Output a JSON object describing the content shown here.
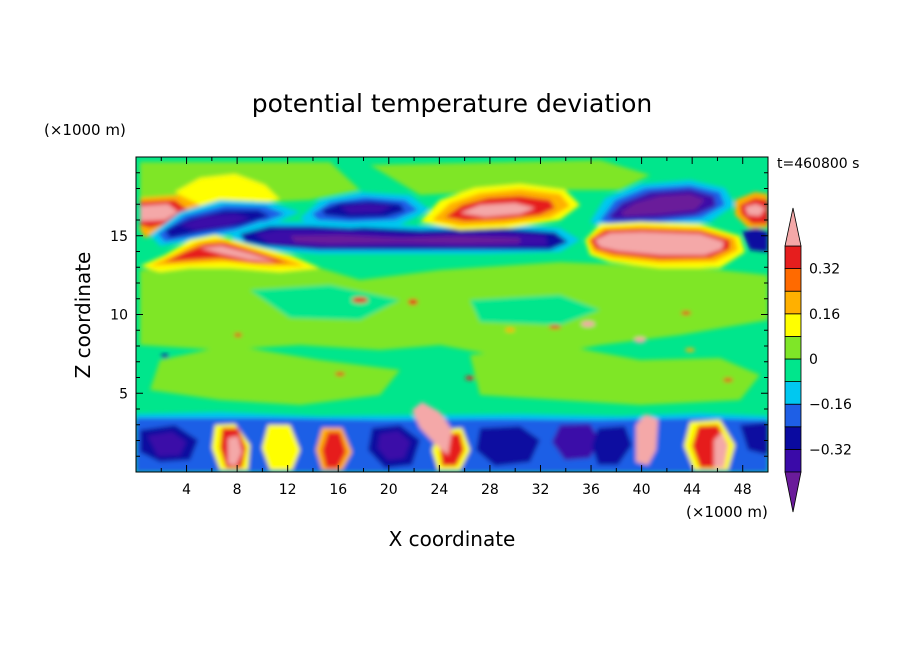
{
  "chart_data": {
    "type": "heatmap",
    "title": "potential temperature deviation",
    "time_label": "t=460800 s",
    "xlabel": "X coordinate",
    "ylabel": "Z coordinate",
    "x_unit": "(×1000 m)",
    "y_unit": "(×1000 m)",
    "xlim": [
      0,
      50
    ],
    "ylim": [
      0,
      20
    ],
    "x_ticks": [
      4,
      8,
      12,
      16,
      20,
      24,
      28,
      32,
      36,
      40,
      44,
      48
    ],
    "y_ticks": [
      5,
      10,
      15
    ],
    "colorbar": {
      "levels": [
        -0.48,
        -0.4,
        -0.32,
        -0.24,
        -0.16,
        -0.08,
        0,
        0.08,
        0.16,
        0.24,
        0.32,
        0.4,
        0.48
      ],
      "labeled_levels": [
        {
          "value": 0.32,
          "label": "0.32"
        },
        {
          "value": 0.16,
          "label": "0.16"
        },
        {
          "value": 0,
          "label": "0"
        },
        {
          "value": -0.16,
          "label": "−0.16"
        },
        {
          "value": -0.32,
          "label": "−0.32"
        }
      ],
      "colors": [
        "#6a1b9a",
        "#3a0aa8",
        "#0a0aa0",
        "#1e5fe6",
        "#00c8f0",
        "#00e68c",
        "#7fe628",
        "#ffff00",
        "#ffb000",
        "#ff6a00",
        "#e61e1e",
        "#f4a8a8"
      ]
    },
    "features": [
      {
        "x": [
          0,
          3
        ],
        "y": [
          15.3,
          17.2
        ],
        "value": 0.4
      },
      {
        "x": [
          3,
          10
        ],
        "y": [
          15.6,
          19.5
        ],
        "value": 0.2
      },
      {
        "x": [
          1.5,
          13
        ],
        "y": [
          14.3,
          16.7
        ],
        "value": -0.36
      },
      {
        "x": [
          9,
          35
        ],
        "y": [
          13.8,
          15.6
        ],
        "value": -0.44
      },
      {
        "x": [
          4,
          15
        ],
        "y": [
          12.8,
          14.6
        ],
        "value": 0.44
      },
      {
        "x": [
          15,
          22
        ],
        "y": [
          15.3,
          17.9
        ],
        "value": -0.36
      },
      {
        "x": [
          25,
          34
        ],
        "y": [
          15.0,
          18.2
        ],
        "value": 0.42
      },
      {
        "x": [
          36,
          47
        ],
        "y": [
          15.3,
          17.9
        ],
        "value": -0.44
      },
      {
        "x": [
          36,
          47
        ],
        "y": [
          13.2,
          15.6
        ],
        "value": 0.46
      },
      {
        "x": [
          47,
          50
        ],
        "y": [
          15.5,
          16.8
        ],
        "value": 0.4
      },
      {
        "x": [
          0,
          50
        ],
        "y": [
          0,
          3.8
        ],
        "value": -0.1
      },
      {
        "x": [
          21,
          25
        ],
        "y": [
          1.5,
          4.5
        ],
        "value": 0.44
      },
      {
        "x": [
          39,
          41
        ],
        "y": [
          0.3,
          3.7
        ],
        "value": 0.46
      },
      {
        "x": [
          45,
          47
        ],
        "y": [
          0.5,
          3.2
        ],
        "value": 0.46
      }
    ]
  }
}
